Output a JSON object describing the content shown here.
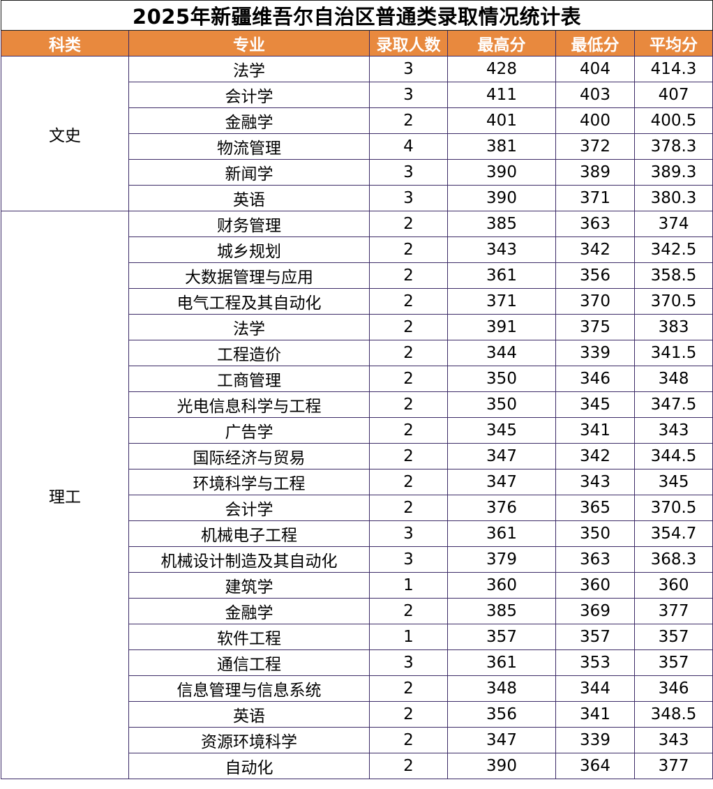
{
  "title": "2025年新疆维吾尔自治区普通类录取情况统计表",
  "headers": [
    "科类",
    "专业",
    "录取人数",
    "最高分",
    "最低分",
    "平均分"
  ],
  "groups": [
    {
      "category": "文史",
      "rows": [
        [
          "法学",
          "3",
          "428",
          "404",
          "414.3"
        ],
        [
          "会计学",
          "3",
          "411",
          "403",
          "407"
        ],
        [
          "金融学",
          "2",
          "401",
          "400",
          "400.5"
        ],
        [
          "物流管理",
          "4",
          "381",
          "372",
          "378.3"
        ],
        [
          "新闻学",
          "3",
          "390",
          "389",
          "389.3"
        ],
        [
          "英语",
          "3",
          "390",
          "371",
          "380.3"
        ]
      ]
    },
    {
      "category": "理工",
      "rows": [
        [
          "财务管理",
          "2",
          "385",
          "363",
          "374"
        ],
        [
          "城乡规划",
          "2",
          "343",
          "342",
          "342.5"
        ],
        [
          "大数据管理与应用",
          "2",
          "361",
          "356",
          "358.5"
        ],
        [
          "电气工程及其自动化",
          "2",
          "371",
          "370",
          "370.5"
        ],
        [
          "法学",
          "2",
          "391",
          "375",
          "383"
        ],
        [
          "工程造价",
          "2",
          "344",
          "339",
          "341.5"
        ],
        [
          "工商管理",
          "2",
          "350",
          "346",
          "348"
        ],
        [
          "光电信息科学与工程",
          "2",
          "350",
          "345",
          "347.5"
        ],
        [
          "广告学",
          "2",
          "345",
          "341",
          "343"
        ],
        [
          "国际经济与贸易",
          "2",
          "347",
          "342",
          "344.5"
        ],
        [
          "环境科学与工程",
          "2",
          "347",
          "343",
          "345"
        ],
        [
          "会计学",
          "2",
          "376",
          "365",
          "370.5"
        ],
        [
          "机械电子工程",
          "3",
          "361",
          "350",
          "354.7"
        ],
        [
          "机械设计制造及其自动化",
          "3",
          "379",
          "363",
          "368.3"
        ],
        [
          "建筑学",
          "1",
          "360",
          "360",
          "360"
        ],
        [
          "金融学",
          "2",
          "385",
          "369",
          "377"
        ],
        [
          "软件工程",
          "1",
          "357",
          "357",
          "357"
        ],
        [
          "通信工程",
          "3",
          "361",
          "353",
          "357"
        ],
        [
          "信息管理与信息系统",
          "2",
          "348",
          "344",
          "346"
        ],
        [
          "英语",
          "2",
          "356",
          "341",
          "348.5"
        ],
        [
          "资源环境科学",
          "2",
          "347",
          "339",
          "343"
        ],
        [
          "自动化",
          "2",
          "390",
          "364",
          "377"
        ]
      ]
    }
  ]
}
